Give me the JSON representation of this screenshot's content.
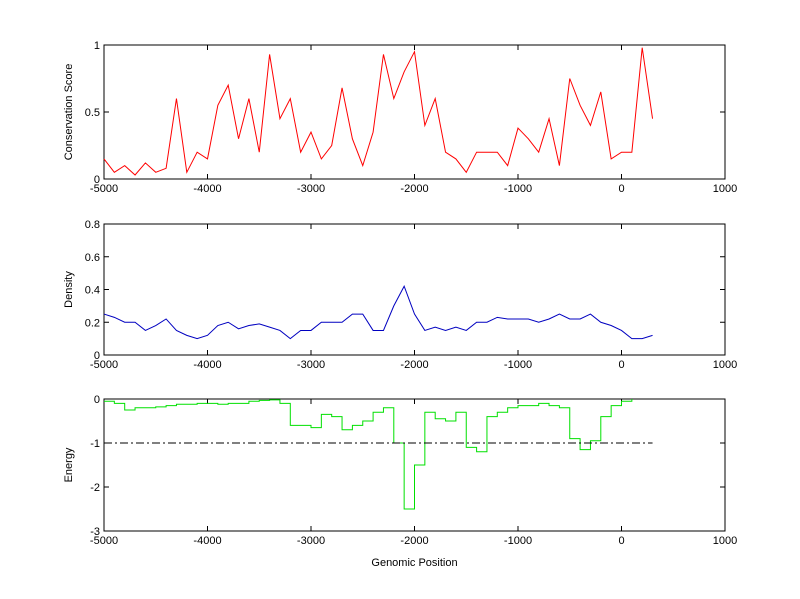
{
  "chart_data": [
    {
      "type": "line",
      "ylabel": "Conservation Score",
      "x": [
        -5000,
        -4900,
        -4800,
        -4700,
        -4600,
        -4500,
        -4400,
        -4300,
        -4200,
        -4100,
        -4000,
        -3900,
        -3800,
        -3700,
        -3600,
        -3500,
        -3400,
        -3300,
        -3200,
        -3100,
        -3000,
        -2900,
        -2800,
        -2700,
        -2600,
        -2500,
        -2400,
        -2300,
        -2200,
        -2100,
        -2000,
        -1900,
        -1800,
        -1700,
        -1600,
        -1500,
        -1400,
        -1300,
        -1200,
        -1100,
        -1000,
        -900,
        -800,
        -700,
        -600,
        -500,
        -400,
        -300,
        -200,
        -100,
        0,
        100,
        200,
        300
      ],
      "series": [
        {
          "color": "#ff0000",
          "values": [
            0.15,
            0.05,
            0.1,
            0.03,
            0.12,
            0.05,
            0.08,
            0.6,
            0.05,
            0.2,
            0.15,
            0.55,
            0.7,
            0.3,
            0.6,
            0.2,
            0.93,
            0.45,
            0.6,
            0.2,
            0.35,
            0.15,
            0.25,
            0.68,
            0.3,
            0.1,
            0.35,
            0.93,
            0.6,
            0.8,
            0.95,
            0.4,
            0.6,
            0.2,
            0.15,
            0.05,
            0.2,
            0.2,
            0.2,
            0.1,
            0.38,
            0.3,
            0.2,
            0.45,
            0.1,
            0.75,
            0.55,
            0.4,
            0.65,
            0.15,
            0.2,
            0.2,
            0.98,
            0.45
          ]
        }
      ],
      "xlim": [
        -5000,
        1000
      ],
      "xticks": [
        -5000,
        -4000,
        -3000,
        -2000,
        -1000,
        0,
        1000
      ],
      "ylim": [
        0,
        1
      ],
      "yticks": [
        0,
        0.5,
        1
      ]
    },
    {
      "type": "line",
      "ylabel": "Density",
      "x": [
        -5000,
        -4900,
        -4800,
        -4700,
        -4600,
        -4500,
        -4400,
        -4300,
        -4200,
        -4100,
        -4000,
        -3900,
        -3800,
        -3700,
        -3600,
        -3500,
        -3400,
        -3300,
        -3200,
        -3100,
        -3000,
        -2900,
        -2800,
        -2700,
        -2600,
        -2500,
        -2400,
        -2300,
        -2200,
        -2100,
        -2000,
        -1900,
        -1800,
        -1700,
        -1600,
        -1500,
        -1400,
        -1300,
        -1200,
        -1100,
        -1000,
        -900,
        -800,
        -700,
        -600,
        -500,
        -400,
        -300,
        -200,
        -100,
        0,
        100,
        200,
        300
      ],
      "series": [
        {
          "color": "#0000c0",
          "values": [
            0.25,
            0.23,
            0.2,
            0.2,
            0.15,
            0.18,
            0.22,
            0.15,
            0.12,
            0.1,
            0.12,
            0.18,
            0.2,
            0.16,
            0.18,
            0.19,
            0.17,
            0.15,
            0.1,
            0.15,
            0.15,
            0.2,
            0.2,
            0.2,
            0.25,
            0.25,
            0.15,
            0.15,
            0.3,
            0.42,
            0.25,
            0.15,
            0.17,
            0.15,
            0.17,
            0.15,
            0.2,
            0.2,
            0.23,
            0.22,
            0.22,
            0.22,
            0.2,
            0.22,
            0.25,
            0.22,
            0.22,
            0.25,
            0.2,
            0.18,
            0.15,
            0.1,
            0.1,
            0.12
          ]
        }
      ],
      "xlim": [
        -5000,
        1000
      ],
      "xticks": [
        -5000,
        -4000,
        -3000,
        -2000,
        -1000,
        0,
        1000
      ],
      "ylim": [
        0,
        0.8
      ],
      "yticks": [
        0,
        0.2,
        0.4,
        0.6,
        0.8
      ]
    },
    {
      "type": "line",
      "drawstyle": "steps",
      "ylabel": "Energy",
      "xlabel": "Genomic Position",
      "x": [
        -5000,
        -4900,
        -4800,
        -4700,
        -4600,
        -4500,
        -4400,
        -4300,
        -4200,
        -4100,
        -4000,
        -3900,
        -3800,
        -3700,
        -3600,
        -3500,
        -3400,
        -3300,
        -3200,
        -3100,
        -3000,
        -2900,
        -2800,
        -2700,
        -2600,
        -2500,
        -2400,
        -2300,
        -2200,
        -2100,
        -2000,
        -1900,
        -1800,
        -1700,
        -1600,
        -1500,
        -1400,
        -1300,
        -1200,
        -1100,
        -1000,
        -900,
        -800,
        -700,
        -600,
        -500,
        -400,
        -300,
        -200,
        -100,
        0,
        100,
        200,
        300
      ],
      "series": [
        {
          "color": "#00e000",
          "values": [
            -0.05,
            -0.1,
            -0.25,
            -0.2,
            -0.2,
            -0.18,
            -0.15,
            -0.12,
            -0.12,
            -0.1,
            -0.1,
            -0.12,
            -0.1,
            -0.1,
            -0.05,
            -0.03,
            -0.02,
            -0.1,
            -0.6,
            -0.6,
            -0.65,
            -0.35,
            -0.4,
            -0.7,
            -0.6,
            -0.5,
            -0.3,
            -0.2,
            -1.0,
            -2.5,
            -1.5,
            -0.3,
            -0.45,
            -0.5,
            -0.3,
            -1.1,
            -1.2,
            -0.4,
            -0.3,
            -0.2,
            -0.15,
            -0.15,
            -0.1,
            -0.15,
            -0.2,
            -0.9,
            -1.15,
            -0.95,
            -0.4,
            -0.15,
            -0.05,
            0,
            null,
            null
          ]
        }
      ],
      "reference_line": {
        "value": -1,
        "x": [
          -5000,
          300
        ],
        "color": "#000000",
        "style": "dashdot"
      },
      "xlim": [
        -5000,
        1000
      ],
      "xticks": [
        -5000,
        -4000,
        -3000,
        -2000,
        -1000,
        0,
        1000
      ],
      "ylim": [
        -3,
        0
      ],
      "yticks": [
        -3,
        -2,
        -1,
        0
      ]
    }
  ]
}
